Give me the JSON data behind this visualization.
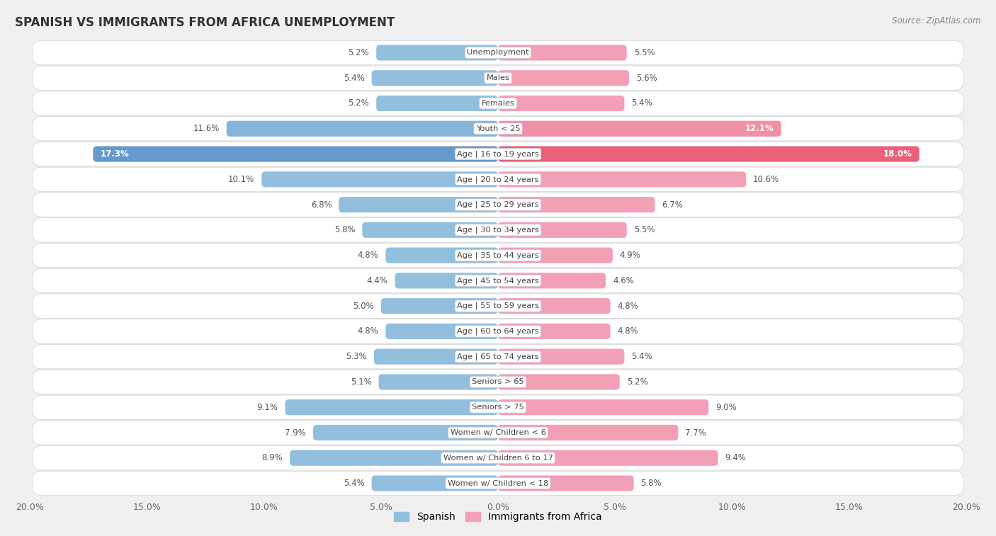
{
  "title": "SPANISH VS IMMIGRANTS FROM AFRICA UNEMPLOYMENT",
  "source": "Source: ZipAtlas.com",
  "categories": [
    "Unemployment",
    "Males",
    "Females",
    "Youth < 25",
    "Age | 16 to 19 years",
    "Age | 20 to 24 years",
    "Age | 25 to 29 years",
    "Age | 30 to 34 years",
    "Age | 35 to 44 years",
    "Age | 45 to 54 years",
    "Age | 55 to 59 years",
    "Age | 60 to 64 years",
    "Age | 65 to 74 years",
    "Seniors > 65",
    "Seniors > 75",
    "Women w/ Children < 6",
    "Women w/ Children 6 to 17",
    "Women w/ Children < 18"
  ],
  "spanish": [
    5.2,
    5.4,
    5.2,
    11.6,
    17.3,
    10.1,
    6.8,
    5.8,
    4.8,
    4.4,
    5.0,
    4.8,
    5.3,
    5.1,
    9.1,
    7.9,
    8.9,
    5.4
  ],
  "africa": [
    5.5,
    5.6,
    5.4,
    12.1,
    18.0,
    10.6,
    6.7,
    5.5,
    4.9,
    4.6,
    4.8,
    4.8,
    5.4,
    5.2,
    9.0,
    7.7,
    9.4,
    5.8
  ],
  "spanish_color": "#93bfde",
  "africa_color": "#f2a0b5",
  "highlight_spanish_color": "#6699cc",
  "highlight_africa_color": "#e8607a",
  "youth25_spanish_color": "#85b5d8",
  "youth25_africa_color": "#f090a8",
  "axis_max": 20.0,
  "background_color": "#f0f0f0",
  "row_bg_white": "#ffffff",
  "row_border": "#d0d0d0",
  "label_white": "#ffffff",
  "label_dark": "#555555",
  "value_color": "#555555",
  "axis_label_color": "#666666",
  "legend_spanish": "Spanish",
  "legend_africa": "Immigrants from Africa",
  "title_color": "#333333",
  "source_color": "#888888"
}
